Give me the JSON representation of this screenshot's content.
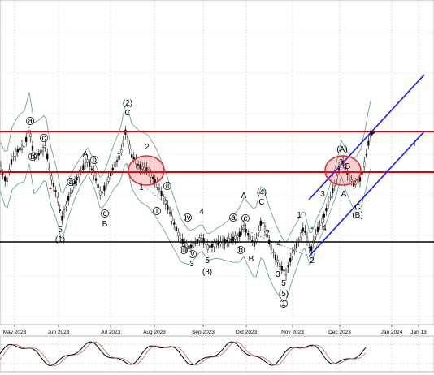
{
  "chart_data": {
    "type": "candlestick",
    "title": "",
    "xlabel": "",
    "ylabel": "",
    "grid": true,
    "x_tick_labels": [
      "May 2023",
      "Jun 2023",
      "Jul 2023",
      "Aug 2023",
      "Sep 2023",
      "Oct 2023",
      "Nov 2023",
      "Dec 2023",
      "Jan 2024",
      "Jan 13"
    ],
    "horizontal_levels": [
      {
        "role": "resistance",
        "color": "#e00000"
      },
      {
        "role": "resistance",
        "color": "#e00000"
      },
      {
        "role": "support",
        "color": "#000000"
      }
    ],
    "channel_color": "#1a1aff",
    "bollinger_color": "#5a9a8a",
    "highlight_circle_color": "#e03030",
    "wave_labels": [
      {
        "text": "a",
        "circled": true
      },
      {
        "text": "b",
        "circled": true
      },
      {
        "text": "c",
        "circled": true
      },
      {
        "text": "A",
        "circled": false
      },
      {
        "text": "b",
        "circled": true
      },
      {
        "text": "a",
        "circled": true
      },
      {
        "text": "c",
        "circled": true
      },
      {
        "text": "B",
        "circled": false
      },
      {
        "text": "5",
        "circled": false
      },
      {
        "text": "(1)",
        "circled": false
      },
      {
        "text": "(2)",
        "circled": false
      },
      {
        "text": "C",
        "circled": false
      },
      {
        "text": "2",
        "circled": false
      },
      {
        "text": "1",
        "circled": false
      },
      {
        "text": "ii",
        "circled": true
      },
      {
        "text": "i",
        "circled": true
      },
      {
        "text": "iv",
        "circled": true
      },
      {
        "text": "iii",
        "circled": true
      },
      {
        "text": "v",
        "circled": true
      },
      {
        "text": "4",
        "circled": false
      },
      {
        "text": "3",
        "circled": false
      },
      {
        "text": "5",
        "circled": false
      },
      {
        "text": "(3)",
        "circled": false
      },
      {
        "text": "a",
        "circled": true
      },
      {
        "text": "c",
        "circled": true
      },
      {
        "text": "b",
        "circled": true
      },
      {
        "text": "A",
        "circled": false
      },
      {
        "text": "(4)",
        "circled": false
      },
      {
        "text": "C",
        "circled": false
      },
      {
        "text": "B",
        "circled": false
      },
      {
        "text": "2",
        "circled": false
      },
      {
        "text": "4",
        "circled": false
      },
      {
        "text": "3",
        "circled": false
      },
      {
        "text": "5",
        "circled": false
      },
      {
        "text": "(5)",
        "circled": false
      },
      {
        "text": "1",
        "circled": true
      },
      {
        "text": "1",
        "circled": false
      },
      {
        "text": "2",
        "circled": false
      },
      {
        "text": "3",
        "circled": false
      },
      {
        "text": "4",
        "circled": false
      },
      {
        "text": "(A)",
        "circled": false
      },
      {
        "text": "5",
        "circled": false
      },
      {
        "text": "B",
        "circled": false
      },
      {
        "text": "A",
        "circled": false
      },
      {
        "text": "C",
        "circled": false
      },
      {
        "text": "(B)",
        "circled": false
      },
      {
        "text": "i",
        "circled": false
      }
    ],
    "indicator_panel": {
      "series": [
        {
          "color": "#000000"
        },
        {
          "color": "#c06060"
        }
      ]
    }
  }
}
